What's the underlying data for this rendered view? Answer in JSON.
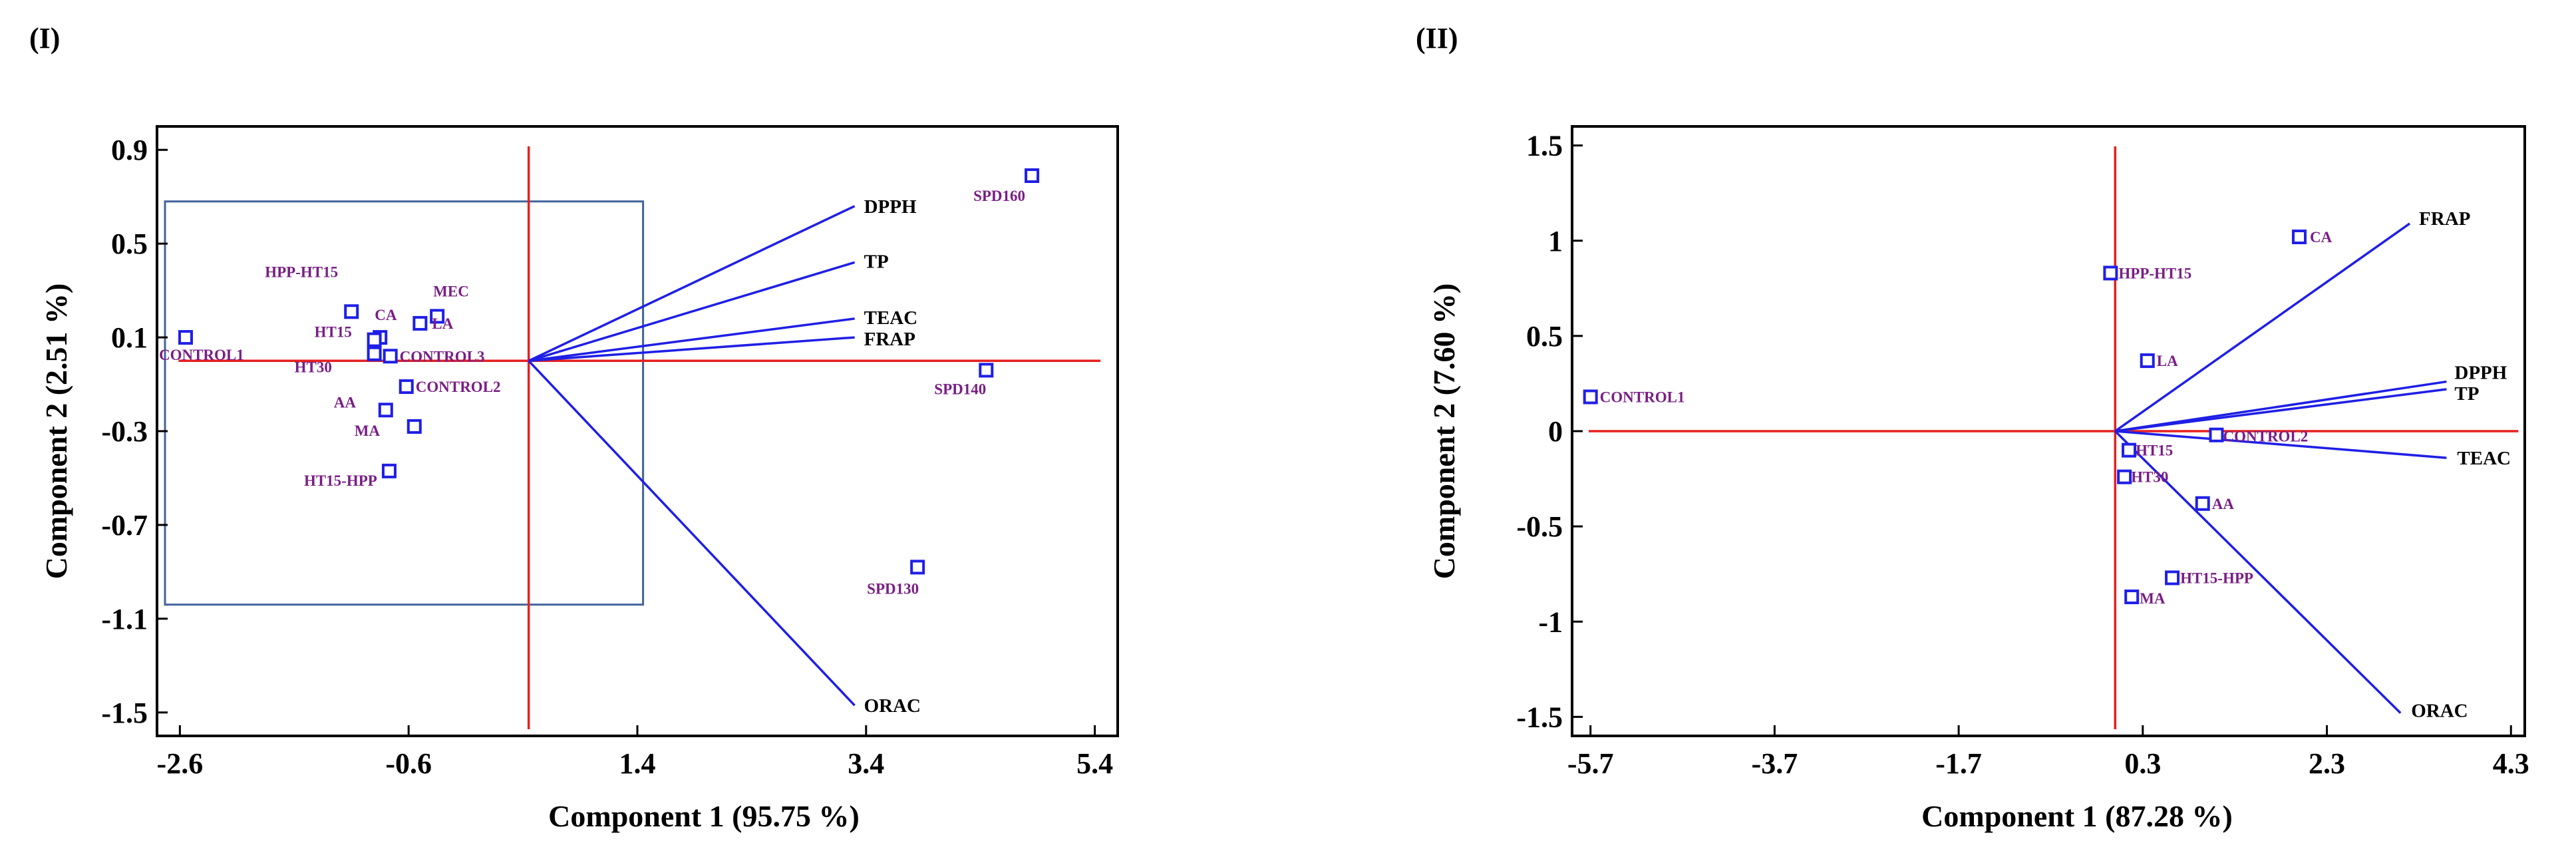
{
  "colors": {
    "vector": "#1f1fe6",
    "axisline": "#e62020",
    "point": "#1f1fe6",
    "pointLabel": "#7a1e86",
    "box": "#41649a"
  },
  "chart_data": [
    {
      "type": "scatter",
      "panel": "(I)",
      "xlabel": "Component 1 (95.75 %)",
      "ylabel": "Component 2 (2.51 %)",
      "xlim": [
        -2.8,
        5.6
      ],
      "ylim": [
        -1.6,
        1.0
      ],
      "xticks": [
        -2.6,
        -0.6,
        1.4,
        3.4,
        5.4
      ],
      "xtick_labels": [
        "-2.6",
        "-0.6",
        "1.4",
        "3.4",
        "5.4"
      ],
      "yticks": [
        0.9,
        0.5,
        0.1,
        -0.3,
        -0.7,
        -1.1,
        -1.5
      ],
      "ytick_labels": [
        "0.9",
        "0.5",
        "0.1",
        "-0.3",
        "-0.7",
        "-1.1",
        "-1.5"
      ],
      "origin": [
        0.45,
        0.0
      ],
      "points": [
        {
          "label": "CONTROL1",
          "x": -2.55,
          "y": 0.1
        },
        {
          "label": "HPP-HT15",
          "x": -1.1,
          "y": 0.21
        },
        {
          "label": "CA",
          "x": -0.85,
          "y": 0.1
        },
        {
          "label": "MEC",
          "x": -0.35,
          "y": 0.19
        },
        {
          "label": "LA",
          "x": -0.5,
          "y": 0.16
        },
        {
          "label": "HT15",
          "x": -0.9,
          "y": 0.09
        },
        {
          "label": "HT30",
          "x": -0.9,
          "y": 0.03
        },
        {
          "label": "CONTROL3",
          "x": -0.76,
          "y": 0.02
        },
        {
          "label": "CONTROL2",
          "x": -0.62,
          "y": -0.11
        },
        {
          "label": "AA",
          "x": -0.8,
          "y": -0.21
        },
        {
          "label": "MA",
          "x": -0.55,
          "y": -0.28
        },
        {
          "label": "HT15-HPP",
          "x": -0.77,
          "y": -0.47
        },
        {
          "label": "SPD160",
          "x": 4.85,
          "y": 0.79
        },
        {
          "label": "SPD140",
          "x": 4.45,
          "y": -0.04
        },
        {
          "label": "SPD130",
          "x": 3.85,
          "y": -0.88
        }
      ],
      "vectors": [
        {
          "label": "DPPH",
          "x": 3.3,
          "y": 0.66
        },
        {
          "label": "TP",
          "x": 3.3,
          "y": 0.42
        },
        {
          "label": "TEAC",
          "x": 3.3,
          "y": 0.18
        },
        {
          "label": "FRAP",
          "x": 3.3,
          "y": 0.1
        },
        {
          "label": "ORAC",
          "x": 3.3,
          "y": -1.47
        }
      ],
      "zoom_box": {
        "x0": -2.8,
        "x1": 1.45,
        "y0": -1.04,
        "y1": 0.68
      }
    },
    {
      "type": "scatter",
      "panel": "(II)",
      "xlabel": "Component 1 (87.28 %)",
      "ylabel": "Component 2 (7.60 %)",
      "xlim": [
        -5.9,
        4.45
      ],
      "ylim": [
        -1.6,
        1.6
      ],
      "xticks": [
        -5.7,
        -3.7,
        -1.7,
        0.3,
        2.3,
        4.3
      ],
      "xtick_labels": [
        "-5.7",
        "-3.7",
        "-1.7",
        "0.3",
        "2.3",
        "4.3"
      ],
      "yticks": [
        1.5,
        1.0,
        0.5,
        0.0,
        -0.5,
        -1.0,
        -1.5
      ],
      "ytick_labels": [
        "1.5",
        "1",
        "0.5",
        "0",
        "-0.5",
        "-1",
        "-1.5"
      ],
      "origin": [
        0.0,
        0.0
      ],
      "points": [
        {
          "label": "CONTROL1",
          "x": -5.7,
          "y": 0.18
        },
        {
          "label": "HPP-HT15",
          "x": -0.05,
          "y": 0.83
        },
        {
          "label": "CA",
          "x": 2.0,
          "y": 1.02
        },
        {
          "label": "LA",
          "x": 0.35,
          "y": 0.37
        },
        {
          "label": "CONTROL2",
          "x": 1.1,
          "y": -0.02
        },
        {
          "label": "HT15",
          "x": 0.15,
          "y": -0.1
        },
        {
          "label": "HT30",
          "x": 0.1,
          "y": -0.24
        },
        {
          "label": "AA",
          "x": 0.95,
          "y": -0.38
        },
        {
          "label": "HT15-HPP",
          "x": 0.62,
          "y": -0.77
        },
        {
          "label": "MA",
          "x": 0.18,
          "y": -0.87
        }
      ],
      "vectors": [
        {
          "label": "FRAP",
          "x": 3.2,
          "y": 1.09
        },
        {
          "label": "DPPH",
          "x": 3.6,
          "y": 0.26
        },
        {
          "label": "TP",
          "x": 3.6,
          "y": 0.22
        },
        {
          "label": "TEAC",
          "x": 3.6,
          "y": -0.14
        },
        {
          "label": "ORAC",
          "x": 3.1,
          "y": -1.48
        }
      ]
    }
  ]
}
